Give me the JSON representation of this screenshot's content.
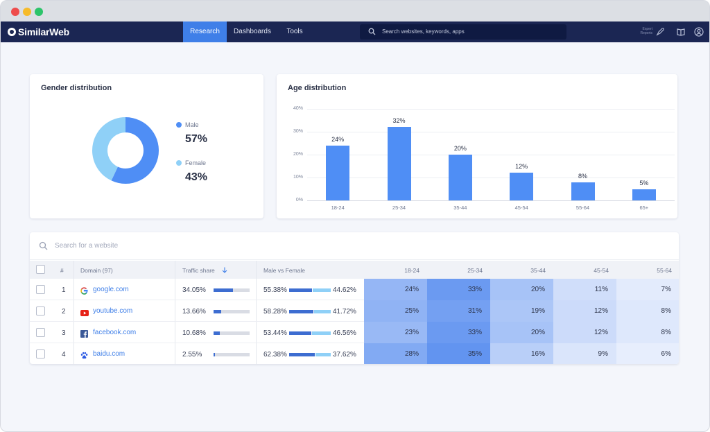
{
  "app": {
    "logo_text": "SimilarWeb",
    "nav_tabs": [
      "Research",
      "Dashboards",
      "Tools"
    ],
    "search_placeholder": "Search websites, keywords, apps",
    "expert_reports_label": "Expert Reports",
    "colors": {
      "nav_bg": "#1b2653",
      "accent": "#3f7fe8",
      "male": "#4f8ef5",
      "female": "#8fd0f7"
    }
  },
  "gender_card": {
    "title": "Gender distribution",
    "male_label": "Male",
    "male_value": "57%",
    "female_label": "Female",
    "female_value": "43%"
  },
  "age_card": {
    "title": "Age distribution"
  },
  "chart_data": [
    {
      "type": "pie",
      "title": "Gender distribution",
      "categories": [
        "Male",
        "Female"
      ],
      "values": [
        57,
        43
      ]
    },
    {
      "type": "bar",
      "title": "Age distribution",
      "categories": [
        "18-24",
        "25-34",
        "35-44",
        "45-54",
        "55-64",
        "65+"
      ],
      "values": [
        24,
        32,
        20,
        12,
        8,
        5
      ],
      "value_labels": [
        "24%",
        "32%",
        "20%",
        "12%",
        "8%",
        "5%"
      ],
      "yticks": [
        "40%",
        "30%",
        "20%",
        "10%",
        "0%"
      ],
      "ylim": [
        0,
        40
      ],
      "grid": true
    }
  ],
  "table": {
    "search_placeholder": "Search for a website",
    "headers": {
      "index": "#",
      "domain": "Domain (97)",
      "traffic": "Traffic share",
      "gender": "Male vs Female",
      "ages": [
        "18-24",
        "25-34",
        "35-44",
        "45-54",
        "55-64"
      ]
    },
    "rows": [
      {
        "rank": "1",
        "icon": "google-icon",
        "domain": "google.com",
        "traffic": "34.05%",
        "traffic_share": 34.05,
        "male": "55.38%",
        "female": "44.62%",
        "male_share": 55.38,
        "ages": [
          "24%",
          "33%",
          "20%",
          "11%",
          "7%"
        ]
      },
      {
        "rank": "2",
        "icon": "youtube-icon",
        "domain": "youtube.com",
        "traffic": "13.66%",
        "traffic_share": 13.66,
        "male": "58.28%",
        "female": "41.72%",
        "male_share": 58.28,
        "ages": [
          "25%",
          "31%",
          "19%",
          "12%",
          "8%"
        ]
      },
      {
        "rank": "3",
        "icon": "facebook-icon",
        "domain": "facebook.com",
        "traffic": "10.68%",
        "traffic_share": 10.68,
        "male": "53.44%",
        "female": "46.56%",
        "male_share": 53.44,
        "ages": [
          "23%",
          "33%",
          "20%",
          "12%",
          "8%"
        ]
      },
      {
        "rank": "4",
        "icon": "baidu-icon",
        "domain": "baidu.com",
        "traffic": "2.55%",
        "traffic_share": 2.55,
        "male": "62.38%",
        "female": "37.62%",
        "male_share": 62.38,
        "ages": [
          "28%",
          "35%",
          "16%",
          "9%",
          "6%"
        ]
      }
    ]
  }
}
